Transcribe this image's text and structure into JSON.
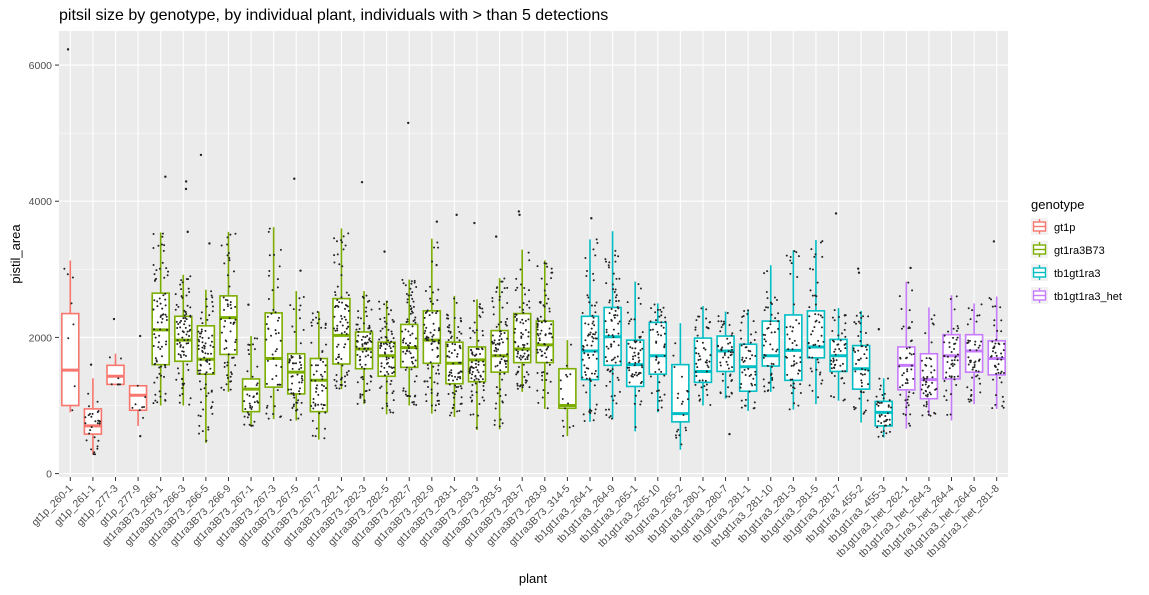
{
  "chart_data": {
    "type": "box",
    "title": "pitsil size by genotype, by individual plant, individuals with > than 5 detections",
    "xlabel": "plant",
    "ylabel": "pistil_area",
    "ylim": [
      -50,
      6500
    ],
    "yticks": [
      0,
      2000,
      4000,
      6000
    ],
    "grid": true,
    "legend": {
      "title": "genotype",
      "position": "right",
      "entries": [
        {
          "name": "gt1p",
          "color": "#F8766D"
        },
        {
          "name": "gt1ra3B73",
          "color": "#7CAE00"
        },
        {
          "name": "tb1gt1ra3",
          "color": "#00BFC4"
        },
        {
          "name": "tb1gt1ra3_het",
          "color": "#C77CFF"
        }
      ]
    },
    "boxes": [
      {
        "plant": "gt1p_260-1",
        "genotype": "gt1p",
        "min": 900,
        "q1": 1000,
        "median": 1520,
        "q3": 2350,
        "max": 3130,
        "outliers": [
          6230
        ],
        "n": 8
      },
      {
        "plant": "gt1p_261-1",
        "genotype": "gt1p",
        "min": 280,
        "q1": 580,
        "median": 700,
        "q3": 950,
        "max": 1400,
        "outliers": [
          1600
        ],
        "n": 30
      },
      {
        "plant": "gt1p_277-3",
        "genotype": "gt1p",
        "min": 1310,
        "q1": 1310,
        "median": 1430,
        "q3": 1590,
        "max": 1760,
        "outliers": [
          2270
        ],
        "n": 8
      },
      {
        "plant": "gt1p_277-9",
        "genotype": "gt1p",
        "min": 700,
        "q1": 930,
        "median": 1150,
        "q3": 1290,
        "max": 1290,
        "outliers": [
          550,
          2020
        ],
        "n": 8
      },
      {
        "plant": "gt1ra3B73_266-1",
        "genotype": "gt1ra3B73",
        "min": 1000,
        "q1": 1600,
        "median": 2110,
        "q3": 2650,
        "max": 3540,
        "outliers": [
          4360
        ],
        "n": 80
      },
      {
        "plant": "gt1ra3B73_266-3",
        "genotype": "gt1ra3B73",
        "min": 1000,
        "q1": 1650,
        "median": 1960,
        "q3": 2310,
        "max": 2920,
        "outliers": [
          3550,
          4180,
          4290
        ],
        "n": 80
      },
      {
        "plant": "gt1ra3B73_266-5",
        "genotype": "gt1ra3B73",
        "min": 450,
        "q1": 1460,
        "median": 1680,
        "q3": 2170,
        "max": 2700,
        "outliers": [
          3380,
          4680
        ],
        "n": 80
      },
      {
        "plant": "gt1ra3B73_266-9",
        "genotype": "gt1ra3B73",
        "min": 1200,
        "q1": 1750,
        "median": 2290,
        "q3": 2610,
        "max": 3550,
        "outliers": [],
        "n": 60
      },
      {
        "plant": "gt1ra3B73_267-1",
        "genotype": "gt1ra3B73",
        "min": 700,
        "q1": 910,
        "median": 1240,
        "q3": 1390,
        "max": 2020,
        "outliers": [
          2480
        ],
        "n": 40
      },
      {
        "plant": "gt1ra3B73_267-3",
        "genotype": "gt1ra3B73",
        "min": 800,
        "q1": 1270,
        "median": 1690,
        "q3": 2360,
        "max": 3620,
        "outliers": [],
        "n": 50
      },
      {
        "plant": "gt1ra3B73_267-5",
        "genotype": "gt1ra3B73",
        "min": 780,
        "q1": 1170,
        "median": 1490,
        "q3": 1760,
        "max": 2680,
        "outliers": [
          2980,
          4330
        ],
        "n": 60
      },
      {
        "plant": "gt1ra3B73_267-7",
        "genotype": "gt1ra3B73",
        "min": 500,
        "q1": 910,
        "median": 1370,
        "q3": 1690,
        "max": 2380,
        "outliers": [],
        "n": 60
      },
      {
        "plant": "gt1ra3B73_282-1",
        "genotype": "gt1ra3B73",
        "min": 1240,
        "q1": 1610,
        "median": 2030,
        "q3": 2570,
        "max": 3600,
        "outliers": [],
        "n": 80
      },
      {
        "plant": "gt1ra3B73_282-3",
        "genotype": "gt1ra3B73",
        "min": 1020,
        "q1": 1540,
        "median": 1830,
        "q3": 2080,
        "max": 2680,
        "outliers": [
          4280
        ],
        "n": 80
      },
      {
        "plant": "gt1ra3B73_282-5",
        "genotype": "gt1ra3B73",
        "min": 870,
        "q1": 1430,
        "median": 1730,
        "q3": 1930,
        "max": 2540,
        "outliers": [
          3260
        ],
        "n": 80
      },
      {
        "plant": "gt1ra3B73_282-7",
        "genotype": "gt1ra3B73",
        "min": 1000,
        "q1": 1560,
        "median": 1850,
        "q3": 2190,
        "max": 2850,
        "outliers": [
          5150
        ],
        "n": 80
      },
      {
        "plant": "gt1ra3B73_282-9",
        "genotype": "gt1ra3B73",
        "min": 880,
        "q1": 1620,
        "median": 1960,
        "q3": 2390,
        "max": 3450,
        "outliers": [
          3700
        ],
        "n": 80
      },
      {
        "plant": "gt1ra3B73_283-1",
        "genotype": "gt1ra3B73",
        "min": 830,
        "q1": 1320,
        "median": 1620,
        "q3": 1930,
        "max": 2610,
        "outliers": [
          3800
        ],
        "n": 80
      },
      {
        "plant": "gt1ra3B73_283-3",
        "genotype": "gt1ra3B73",
        "min": 640,
        "q1": 1350,
        "median": 1670,
        "q3": 1860,
        "max": 2560,
        "outliers": [
          3680
        ],
        "n": 80
      },
      {
        "plant": "gt1ra3B73_283-5",
        "genotype": "gt1ra3B73",
        "min": 650,
        "q1": 1490,
        "median": 1730,
        "q3": 2100,
        "max": 2870,
        "outliers": [
          3480
        ],
        "n": 80
      },
      {
        "plant": "gt1ra3B73_283-7",
        "genotype": "gt1ra3B73",
        "min": 1200,
        "q1": 1630,
        "median": 1830,
        "q3": 2350,
        "max": 3290,
        "outliers": [
          3800,
          3850
        ],
        "n": 80
      },
      {
        "plant": "gt1ra3B73_283-9",
        "genotype": "gt1ra3B73",
        "min": 950,
        "q1": 1630,
        "median": 1890,
        "q3": 2240,
        "max": 3130,
        "outliers": [],
        "n": 80
      },
      {
        "plant": "gt1ra3B73_314-5",
        "genotype": "gt1ra3B73",
        "min": 550,
        "q1": 960,
        "median": 1000,
        "q3": 1540,
        "max": 1960,
        "outliers": [],
        "n": 15
      },
      {
        "plant": "tb1gt1ra3_264-1",
        "genotype": "tb1gt1ra3",
        "min": 760,
        "q1": 1380,
        "median": 1800,
        "q3": 2310,
        "max": 3440,
        "outliers": [
          3750
        ],
        "n": 80
      },
      {
        "plant": "tb1gt1ra3_264-9",
        "genotype": "tb1gt1ra3",
        "min": 800,
        "q1": 1590,
        "median": 2010,
        "q3": 2440,
        "max": 3560,
        "outliers": [],
        "n": 80
      },
      {
        "plant": "tb1gt1ra3_265-1",
        "genotype": "tb1gt1ra3",
        "min": 620,
        "q1": 1280,
        "median": 1600,
        "q3": 1960,
        "max": 2820,
        "outliers": [],
        "n": 60
      },
      {
        "plant": "tb1gt1ra3_265-10",
        "genotype": "tb1gt1ra3",
        "min": 900,
        "q1": 1460,
        "median": 1730,
        "q3": 2220,
        "max": 2500,
        "outliers": [],
        "n": 50
      },
      {
        "plant": "tb1gt1ra3_265-2",
        "genotype": "tb1gt1ra3",
        "min": 350,
        "q1": 760,
        "median": 880,
        "q3": 1600,
        "max": 2210,
        "outliers": [],
        "n": 20
      },
      {
        "plant": "tb1gt1ra3_280-1",
        "genotype": "tb1gt1ra3",
        "min": 1000,
        "q1": 1340,
        "median": 1500,
        "q3": 1990,
        "max": 2460,
        "outliers": [],
        "n": 50
      },
      {
        "plant": "tb1gt1ra3_280-7",
        "genotype": "tb1gt1ra3",
        "min": 1100,
        "q1": 1500,
        "median": 1800,
        "q3": 2020,
        "max": 2380,
        "outliers": [
          580
        ],
        "n": 50
      },
      {
        "plant": "tb1gt1ra3_281-1",
        "genotype": "tb1gt1ra3",
        "min": 920,
        "q1": 1210,
        "median": 1570,
        "q3": 1900,
        "max": 2410,
        "outliers": [],
        "n": 50
      },
      {
        "plant": "tb1gt1ra3_281-10",
        "genotype": "tb1gt1ra3",
        "min": 1200,
        "q1": 1580,
        "median": 1730,
        "q3": 2240,
        "max": 3060,
        "outliers": [],
        "n": 50
      },
      {
        "plant": "tb1gt1ra3_281-3",
        "genotype": "tb1gt1ra3",
        "min": 940,
        "q1": 1370,
        "median": 1810,
        "q3": 2330,
        "max": 3280,
        "outliers": [],
        "n": 50
      },
      {
        "plant": "tb1gt1ra3_281-5",
        "genotype": "tb1gt1ra3",
        "min": 1020,
        "q1": 1700,
        "median": 1860,
        "q3": 2390,
        "max": 3430,
        "outliers": [],
        "n": 50
      },
      {
        "plant": "tb1gt1ra3_281-7",
        "genotype": "tb1gt1ra3",
        "min": 1070,
        "q1": 1500,
        "median": 1730,
        "q3": 1970,
        "max": 2430,
        "outliers": [
          3820
        ],
        "n": 50
      },
      {
        "plant": "tb1gt1ra3_455-2",
        "genotype": "tb1gt1ra3",
        "min": 750,
        "q1": 1240,
        "median": 1540,
        "q3": 1880,
        "max": 2390,
        "outliers": [
          2950,
          3010
        ],
        "n": 50
      },
      {
        "plant": "tb1gt1ra3_455-3",
        "genotype": "tb1gt1ra3",
        "min": 530,
        "q1": 700,
        "median": 900,
        "q3": 1060,
        "max": 1400,
        "outliers": [
          2120
        ],
        "n": 40
      },
      {
        "plant": "tb1gt1ra3_het_262-1",
        "genotype": "tb1gt1ra3_het",
        "min": 660,
        "q1": 1230,
        "median": 1590,
        "q3": 1860,
        "max": 2820,
        "outliers": [
          3020
        ],
        "n": 50
      },
      {
        "plant": "tb1gt1ra3_het_264-3",
        "genotype": "tb1gt1ra3_het",
        "min": 850,
        "q1": 1100,
        "median": 1380,
        "q3": 1760,
        "max": 2440,
        "outliers": [],
        "n": 50
      },
      {
        "plant": "tb1gt1ra3_het_264-4",
        "genotype": "tb1gt1ra3_het",
        "min": 780,
        "q1": 1390,
        "median": 1730,
        "q3": 2040,
        "max": 2620,
        "outliers": [],
        "n": 50
      },
      {
        "plant": "tb1gt1ra3_het_264-6",
        "genotype": "tb1gt1ra3_het",
        "min": 1020,
        "q1": 1490,
        "median": 1800,
        "q3": 2040,
        "max": 2500,
        "outliers": [],
        "n": 50
      },
      {
        "plant": "tb1gt1ra3_het_281-8",
        "genotype": "tb1gt1ra3_het",
        "min": 950,
        "q1": 1450,
        "median": 1690,
        "q3": 1950,
        "max": 2600,
        "outliers": [
          3410
        ],
        "n": 50
      }
    ]
  }
}
